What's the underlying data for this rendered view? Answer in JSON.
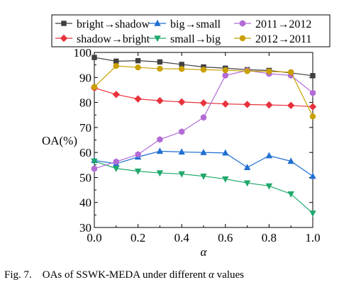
{
  "chart_data": {
    "type": "line",
    "xlabel": "α",
    "ylabel": "OA(%)",
    "xlim": [
      0.0,
      1.0
    ],
    "ylim": [
      30,
      100
    ],
    "x": [
      0.0,
      0.1,
      0.2,
      0.3,
      0.4,
      0.5,
      0.6,
      0.7,
      0.8,
      0.9,
      1.0
    ],
    "x_tick_labels": [
      "0.0",
      "0.2",
      "0.4",
      "0.6",
      "0.8",
      "1.0"
    ],
    "y_tick_labels": [
      "30",
      "40",
      "50",
      "60",
      "70",
      "80",
      "90",
      "100"
    ],
    "legend_position": "top",
    "grid": false,
    "series": [
      {
        "name": "bright→shadow",
        "color": "#3f3f3f",
        "marker": "square",
        "values": [
          98.0,
          96.5,
          96.7,
          96.2,
          95.2,
          94.2,
          93.7,
          93.1,
          92.8,
          91.8,
          90.7
        ]
      },
      {
        "name": "shadow→bright",
        "color": "#e8323c",
        "marker": "diamond",
        "values": [
          85.8,
          83.2,
          81.4,
          80.7,
          80.2,
          79.8,
          79.4,
          79.2,
          79.0,
          78.8,
          78.3
        ]
      },
      {
        "name": "big→small",
        "color": "#1f6fd1",
        "marker": "triangle-up",
        "values": [
          56.8,
          55.5,
          58.2,
          60.5,
          60.2,
          60.0,
          59.8,
          54.0,
          58.7,
          56.5,
          50.5
        ]
      },
      {
        "name": "small→big",
        "color": "#1fa86a",
        "marker": "triangle-down",
        "values": [
          56.5,
          53.6,
          52.5,
          51.8,
          51.4,
          50.5,
          49.4,
          47.8,
          46.6,
          43.4,
          35.7
        ]
      },
      {
        "name": "2011→2012",
        "color": "#b26bd6",
        "marker": "hexagon",
        "values": [
          53.5,
          56.3,
          59.2,
          65.2,
          68.3,
          74.0,
          90.8,
          92.8,
          91.5,
          90.8,
          83.8
        ]
      },
      {
        "name": "2012→2011",
        "color": "#c9a000",
        "marker": "circle",
        "values": [
          86.2,
          94.6,
          94.0,
          93.5,
          93.4,
          93.1,
          92.9,
          92.5,
          92.4,
          92.1,
          74.4
        ]
      }
    ]
  },
  "caption": {
    "prefix": "Fig. 7.",
    "text": "OAs of SSWK-MEDA under different",
    "alpha": "α",
    "suffix": "values"
  }
}
